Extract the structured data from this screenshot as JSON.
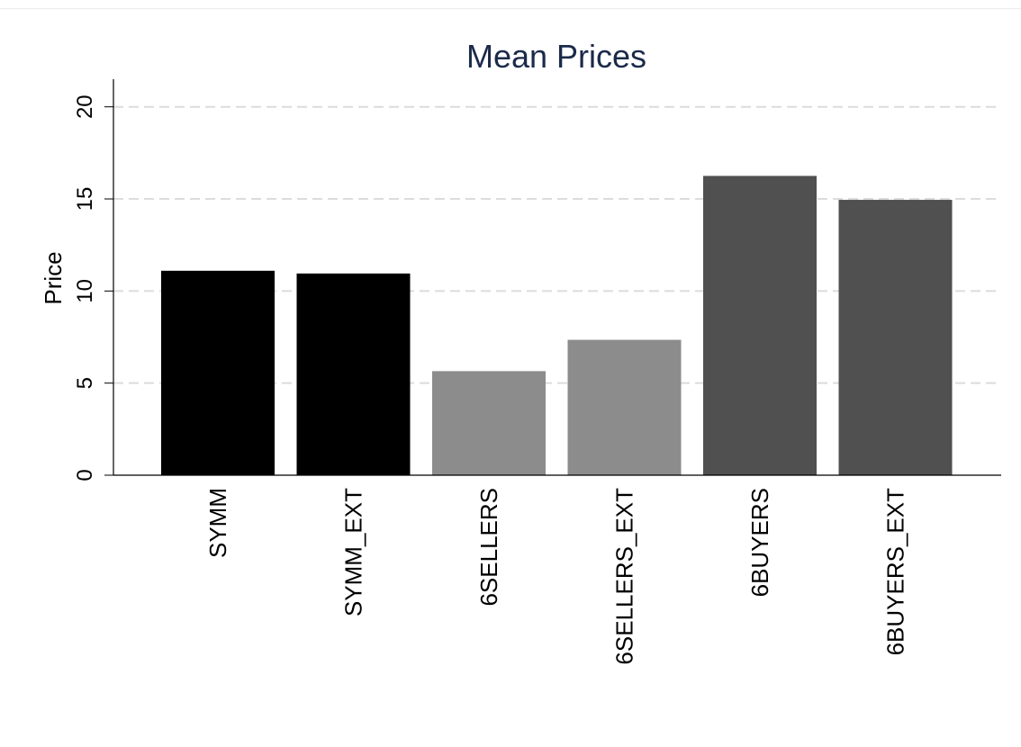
{
  "chart_data": {
    "type": "bar",
    "title": "Mean Prices",
    "ylabel": "Price",
    "xlabel": "",
    "ylim": [
      0,
      21.5
    ],
    "yticks": [
      0,
      5,
      10,
      15,
      20
    ],
    "grid": "dashed horizontal",
    "categories": [
      "SYMM",
      "SYMM_EXT",
      "6SELLERS",
      "6SELLERS_EXT",
      "6BUYERS",
      "6BUYERS_EXT"
    ],
    "values": [
      11.1,
      10.95,
      5.65,
      7.35,
      16.25,
      14.95
    ],
    "bar_colors": [
      "#000000",
      "#000000",
      "#8c8c8c",
      "#8c8c8c",
      "#505050",
      "#505050"
    ],
    "title_color": "#1b2a4a",
    "grid_color": "#dcdcdc"
  }
}
